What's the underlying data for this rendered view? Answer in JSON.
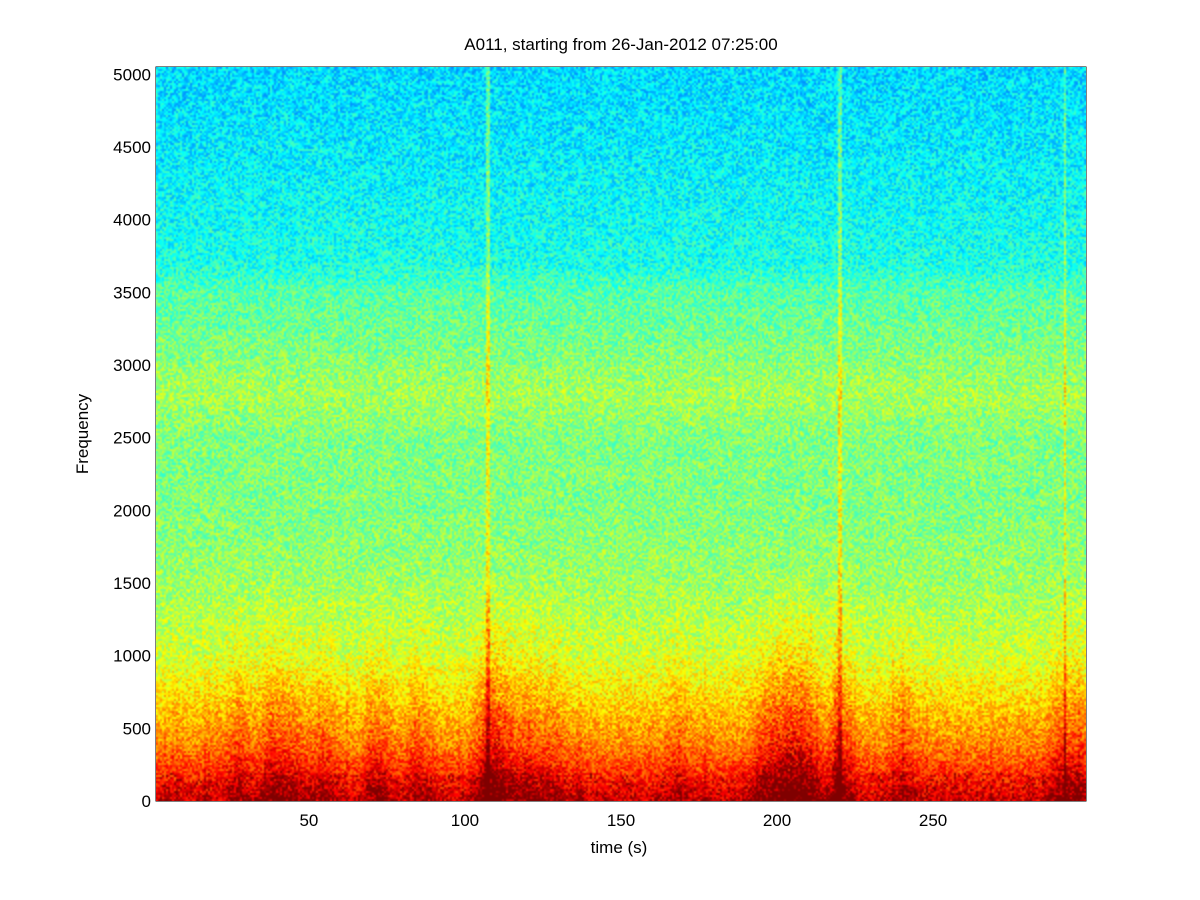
{
  "chart_data": {
    "type": "heatmap",
    "title": "A011, starting from 26-Jan-2012 07:25:00",
    "xlabel": "time (s)",
    "ylabel": "Frequency",
    "xlim": [
      1,
      299
    ],
    "ylim": [
      0,
      5050
    ],
    "xticks": [
      50,
      100,
      150,
      200,
      250
    ],
    "xtick_labels": [
      "50",
      "100",
      "150",
      "200",
      "250"
    ],
    "yticks": [
      0,
      500,
      1000,
      1500,
      2000,
      2500,
      3000,
      3500,
      4000,
      4500,
      5000
    ],
    "ytick_labels": [
      "0",
      "500",
      "1000",
      "1500",
      "2000",
      "2500",
      "3000",
      "3500",
      "4000",
      "4500",
      "5000"
    ],
    "colormap": "jet",
    "grid": false,
    "legend": "none",
    "frequency_profile": [
      {
        "freq": 0,
        "level": 0.92
      },
      {
        "freq": 150,
        "level": 0.85
      },
      {
        "freq": 400,
        "level": 0.74
      },
      {
        "freq": 700,
        "level": 0.66
      },
      {
        "freq": 1000,
        "level": 0.58
      },
      {
        "freq": 1500,
        "level": 0.53
      },
      {
        "freq": 2000,
        "level": 0.5
      },
      {
        "freq": 2500,
        "level": 0.5
      },
      {
        "freq": 2800,
        "level": 0.54
      },
      {
        "freq": 3100,
        "level": 0.5
      },
      {
        "freq": 3500,
        "level": 0.46
      },
      {
        "freq": 3700,
        "level": 0.4
      },
      {
        "freq": 4500,
        "level": 0.36
      },
      {
        "freq": 5050,
        "level": 0.34
      }
    ],
    "broadband_events_s": [
      107,
      220,
      292
    ],
    "activity_bursts": [
      {
        "time": 27,
        "strength": 0.6
      },
      {
        "time": 38,
        "strength": 0.8
      },
      {
        "time": 45,
        "strength": 0.5
      },
      {
        "time": 55,
        "strength": 0.5
      },
      {
        "time": 72,
        "strength": 0.6
      },
      {
        "time": 85,
        "strength": 0.5
      },
      {
        "time": 107,
        "strength": 1.0
      },
      {
        "time": 112,
        "strength": 0.8
      },
      {
        "time": 120,
        "strength": 0.7
      },
      {
        "time": 128,
        "strength": 0.5
      },
      {
        "time": 168,
        "strength": 0.4
      },
      {
        "time": 195,
        "strength": 0.6
      },
      {
        "time": 200,
        "strength": 0.8
      },
      {
        "time": 205,
        "strength": 0.9
      },
      {
        "time": 210,
        "strength": 0.8
      },
      {
        "time": 220,
        "strength": 0.9
      },
      {
        "time": 240,
        "strength": 0.5
      },
      {
        "time": 290,
        "strength": 0.6
      },
      {
        "time": 296,
        "strength": 0.6
      }
    ]
  }
}
